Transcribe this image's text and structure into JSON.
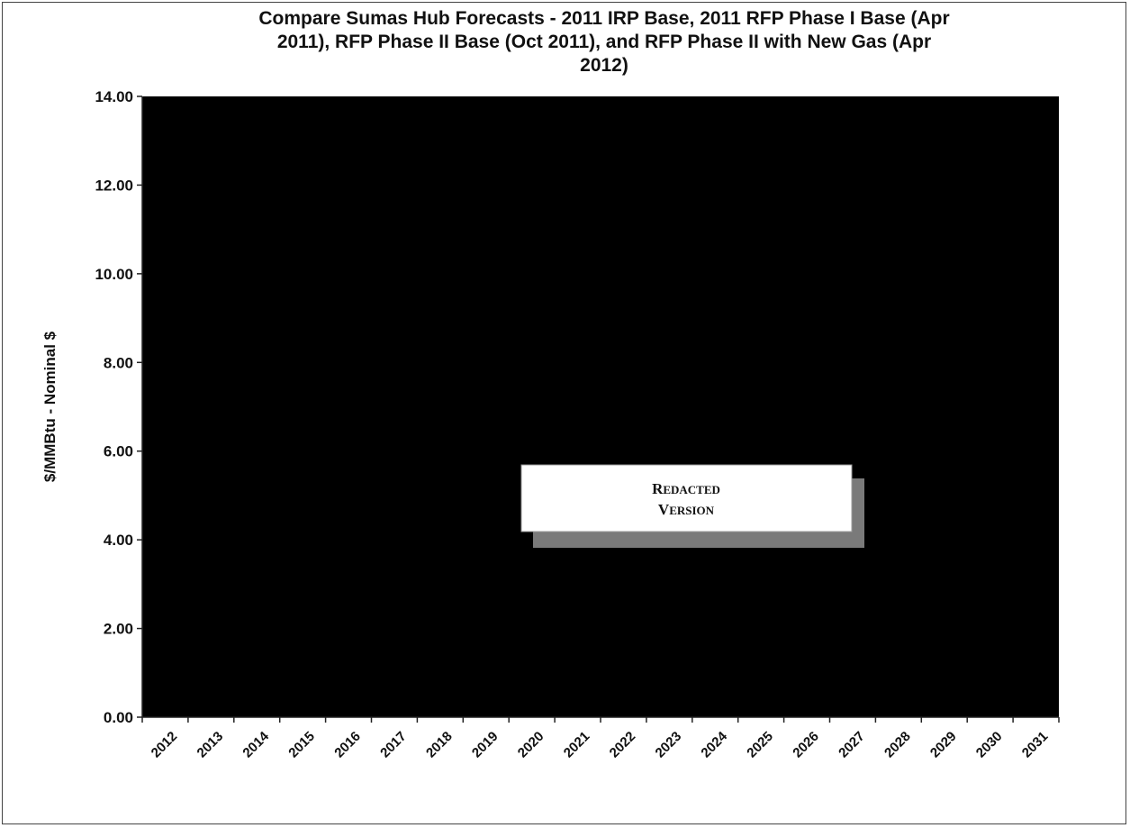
{
  "chart_data": {
    "type": "line",
    "title_lines": [
      "Compare Sumas Hub Forecasts - 2011 IRP Base, 2011 RFP Phase I Base (Apr",
      "2011), RFP Phase II Base (Oct 2011), and RFP Phase II  with  New Gas (Apr",
      "2012)"
    ],
    "ylabel": "$/MMBtu - Nominal $",
    "xlabel": "",
    "ylim": [
      0,
      14
    ],
    "yticks": [
      "0.00",
      "2.00",
      "4.00",
      "6.00",
      "8.00",
      "10.00",
      "12.00",
      "14.00"
    ],
    "categories": [
      "2012",
      "2013",
      "2014",
      "2015",
      "2016",
      "2017",
      "2018",
      "2019",
      "2020",
      "2021",
      "2022",
      "2023",
      "2024",
      "2025",
      "2026",
      "2027",
      "2028",
      "2029",
      "2030",
      "2031"
    ],
    "plot_background": "#000000",
    "series": [],
    "grid": false
  },
  "stamp": {
    "line1": "Redacted",
    "line2": "Version",
    "shadow_color": "#7a7a7a"
  }
}
